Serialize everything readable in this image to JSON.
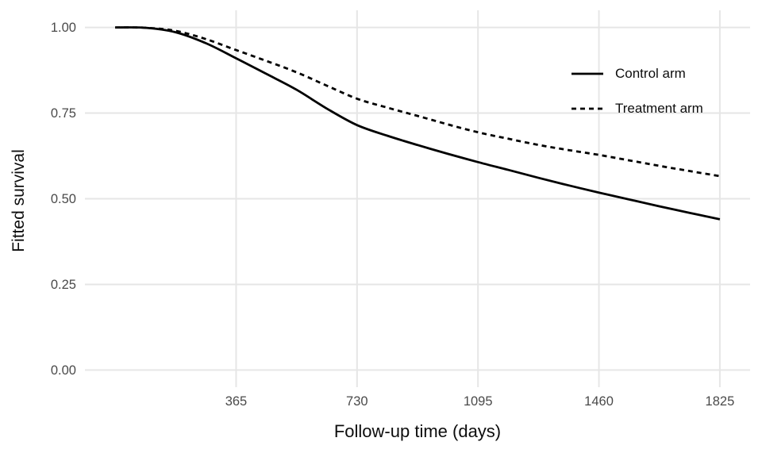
{
  "chart_data": {
    "type": "line",
    "title": "",
    "xlabel": "Follow-up time (days)",
    "ylabel": "Fitted survival",
    "xlim": [
      0,
      1825
    ],
    "ylim": [
      0,
      1
    ],
    "axis_expansion": 0.05,
    "grid": "major-only",
    "legend_position": "inside-top-right",
    "x_ticks": {
      "values": [
        365,
        730,
        1095,
        1460,
        1825
      ],
      "labels": [
        "365",
        "730",
        "1095",
        "1460",
        "1825"
      ]
    },
    "y_ticks": {
      "values": [
        0,
        0.25,
        0.5,
        0.75,
        1
      ],
      "labels": [
        "0.00",
        "0.25",
        "0.50",
        "0.75",
        "1.00"
      ]
    },
    "x": [
      0,
      91,
      182,
      274,
      365,
      457,
      548,
      639,
      730,
      821,
      912,
      1004,
      1095,
      1187,
      1278,
      1369,
      1460,
      1551,
      1642,
      1733,
      1825
    ],
    "series": [
      {
        "name": "Control arm",
        "linetype": "solid",
        "color": "#000000",
        "values": [
          1.0,
          0.999,
          0.986,
          0.954,
          0.91,
          0.864,
          0.818,
          0.763,
          0.715,
          0.684,
          0.657,
          0.631,
          0.607,
          0.584,
          0.561,
          0.539,
          0.518,
          0.498,
          0.478,
          0.459,
          0.44
        ]
      },
      {
        "name": "Treatment arm",
        "linetype": "dashed",
        "color": "#000000",
        "values": [
          1.0,
          0.999,
          0.99,
          0.966,
          0.934,
          0.902,
          0.869,
          0.83,
          0.792,
          0.766,
          0.742,
          0.717,
          0.694,
          0.675,
          0.657,
          0.642,
          0.628,
          0.612,
          0.596,
          0.581,
          0.566
        ]
      }
    ],
    "colors": {
      "line": "#000000",
      "grid": "#e6e6e6",
      "tick_label": "#4a4a4a",
      "axis_title": "#0d0d0d",
      "background": "#ffffff"
    }
  }
}
